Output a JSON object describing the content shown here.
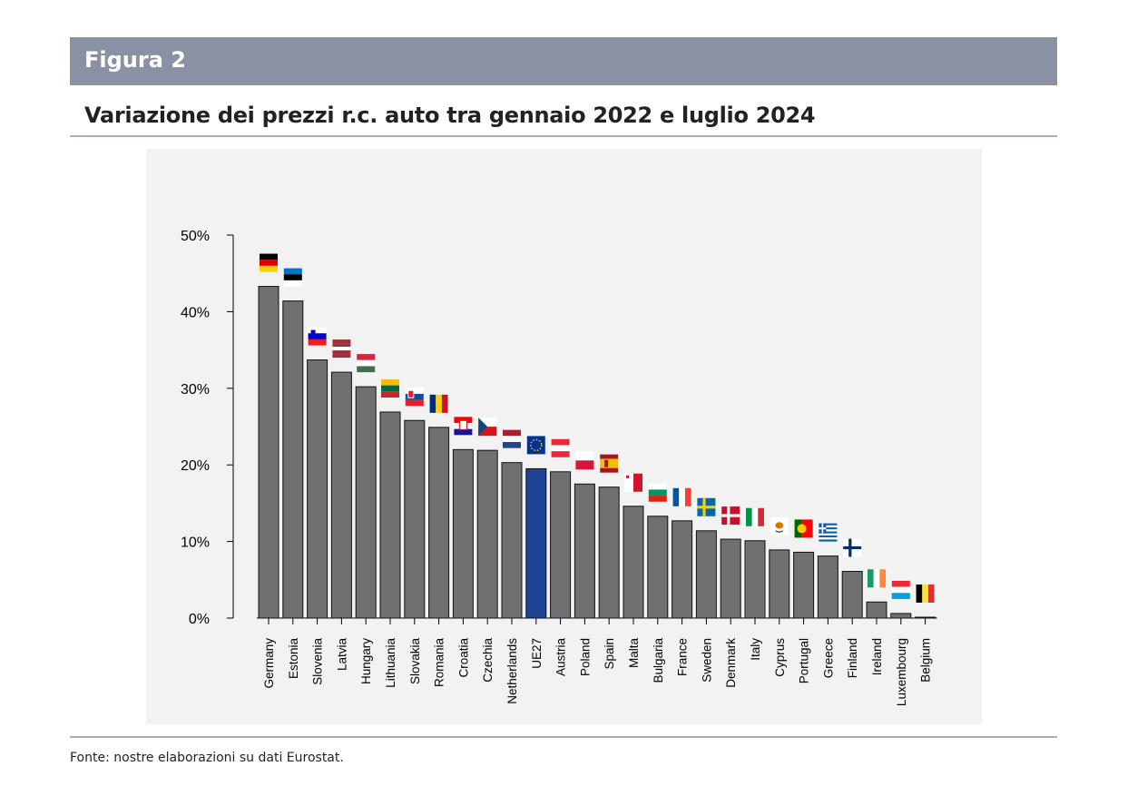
{
  "figure": {
    "label": "Figura 2",
    "title": "Variazione dei prezzi r.c. auto tra gennaio 2022 e luglio 2024",
    "source": "Fonte: nostre elaborazioni su dati Eurostat."
  },
  "colors": {
    "bar": "#6e7072",
    "highlight": "#1f4496",
    "header": "#8a91a3",
    "panel": "#f2f2f2"
  },
  "chart_data": {
    "type": "bar",
    "title": "Variazione dei prezzi r.c. auto tra gennaio 2022 e luglio 2024",
    "xlabel": "",
    "ylabel": "",
    "ylim": [
      0,
      50
    ],
    "yticks": [
      0,
      10,
      20,
      30,
      40,
      50
    ],
    "ytick_labels": [
      "0%",
      "10%",
      "20%",
      "30%",
      "40%",
      "50%"
    ],
    "grid": false,
    "categories": [
      "Germany",
      "Estonia",
      "Slovenia",
      "Latvia",
      "Hungary",
      "Lithuania",
      "Slovakia",
      "Romania",
      "Croatia",
      "Czechia",
      "Netherlands",
      "UE27",
      "Austria",
      "Poland",
      "Spain",
      "Malta",
      "Bulgaria",
      "France",
      "Sweden",
      "Denmark",
      "Italy",
      "Cyprus",
      "Portugal",
      "Greece",
      "Finland",
      "Ireland",
      "Luxembourg",
      "Belgium"
    ],
    "values": [
      43.3,
      41.4,
      33.7,
      32.1,
      30.2,
      26.9,
      25.8,
      24.9,
      22.0,
      21.9,
      20.3,
      19.5,
      19.1,
      17.5,
      17.1,
      14.6,
      13.3,
      12.7,
      11.4,
      10.3,
      10.1,
      8.9,
      8.6,
      8.1,
      6.1,
      2.1,
      0.6,
      0.1
    ],
    "highlight": "UE27",
    "annotations": "country flag icon above each bar"
  }
}
